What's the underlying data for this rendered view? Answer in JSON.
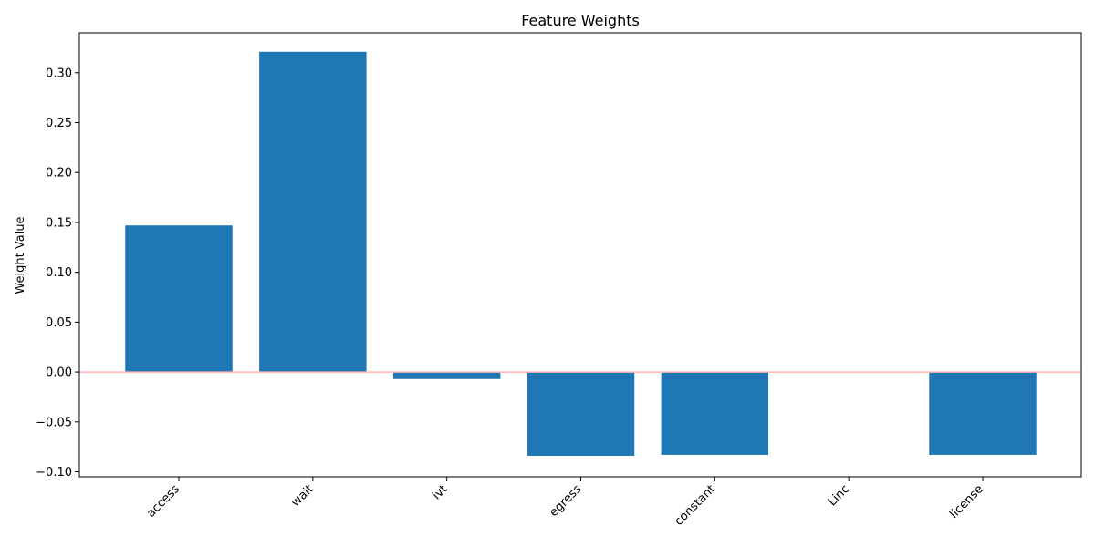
{
  "chart_data": {
    "type": "bar",
    "title": "Feature Weights",
    "xlabel": "",
    "ylabel": "Weight Value",
    "categories": [
      "access",
      "wait",
      "ivt",
      "egress",
      "constant",
      "Linc",
      "license"
    ],
    "values": [
      0.147,
      0.321,
      -0.007,
      -0.084,
      -0.083,
      0.0,
      -0.083
    ],
    "ylim": [
      -0.105,
      0.34
    ],
    "yticks": [
      "0.30",
      "0.25",
      "0.20",
      "0.15",
      "0.10",
      "0.05",
      "0.00",
      "−0.05",
      "−0.10"
    ],
    "ytick_values": [
      0.3,
      0.25,
      0.2,
      0.15,
      0.1,
      0.05,
      0.0,
      -0.05,
      -0.1
    ],
    "bar_color": "#1f77b4",
    "zero_line_color": "#ffb3b3",
    "grid": false,
    "legend": "none"
  }
}
